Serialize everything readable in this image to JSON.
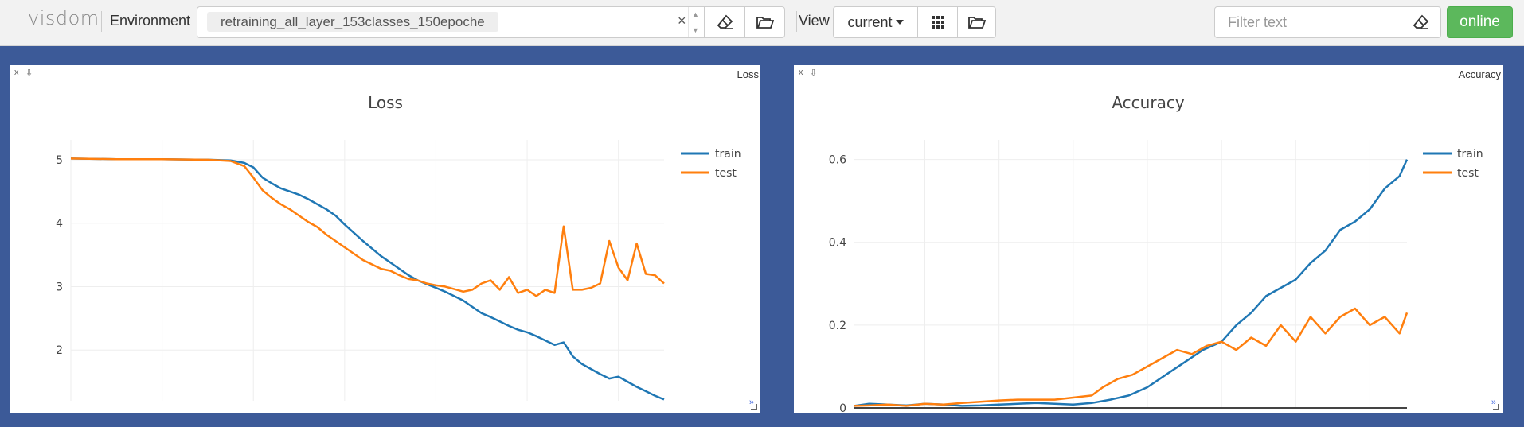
{
  "toolbar": {
    "logo": "visdom",
    "environment_label": "Environment",
    "environment_value": "retraining_all_layer_153classes_150epoche",
    "clear_glyph": "×",
    "view_label": "View",
    "view_value": "current",
    "filter_placeholder": "Filter text",
    "online_label": "online"
  },
  "panes": [
    {
      "name": "Loss",
      "close_glyph": "x",
      "download_glyph": "⇩",
      "expand_glyph": "»",
      "chart_data": {
        "type": "line",
        "title": "Loss",
        "xlabel": "",
        "ylabel": "",
        "xlim": [
          20,
          150
        ],
        "ylim": [
          1.2,
          5.2
        ],
        "xticks": [
          20,
          40,
          60,
          80,
          100,
          120,
          140
        ],
        "yticks": [
          2,
          3,
          4,
          5
        ],
        "grid": true,
        "legend": "top-right",
        "colors": {
          "train": "#1f77b4",
          "test": "#ff7f0e"
        },
        "series": [
          {
            "name": "train",
            "x": [
              20,
              30,
              40,
              50,
              55,
              58,
              60,
              62,
              64,
              66,
              68,
              70,
              72,
              74,
              76,
              78,
              80,
              82,
              84,
              86,
              88,
              90,
              92,
              94,
              96,
              98,
              100,
              102,
              104,
              106,
              108,
              110,
              112,
              114,
              116,
              118,
              120,
              122,
              124,
              126,
              128,
              130,
              132,
              134,
              136,
              138,
              140,
              142,
              144,
              146,
              148,
              150
            ],
            "y": [
              5.02,
              5.01,
              5.01,
              5.0,
              4.99,
              4.95,
              4.88,
              4.72,
              4.63,
              4.55,
              4.5,
              4.45,
              4.38,
              4.3,
              4.22,
              4.12,
              3.98,
              3.85,
              3.72,
              3.6,
              3.48,
              3.38,
              3.28,
              3.18,
              3.1,
              3.04,
              2.98,
              2.92,
              2.85,
              2.78,
              2.68,
              2.58,
              2.52,
              2.45,
              2.38,
              2.32,
              2.28,
              2.22,
              2.15,
              2.08,
              2.12,
              1.9,
              1.78,
              1.7,
              1.62,
              1.55,
              1.58,
              1.5,
              1.42,
              1.35,
              1.28,
              1.22
            ]
          },
          {
            "name": "test",
            "x": [
              20,
              30,
              40,
              50,
              55,
              58,
              60,
              62,
              64,
              66,
              68,
              70,
              72,
              74,
              76,
              78,
              80,
              82,
              84,
              86,
              88,
              90,
              92,
              94,
              96,
              98,
              100,
              102,
              104,
              106,
              108,
              110,
              112,
              114,
              116,
              118,
              120,
              122,
              124,
              126,
              128,
              130,
              132,
              134,
              136,
              138,
              140,
              142,
              144,
              146,
              148,
              150
            ],
            "y": [
              5.02,
              5.01,
              5.01,
              5.0,
              4.98,
              4.9,
              4.72,
              4.52,
              4.4,
              4.3,
              4.22,
              4.12,
              4.02,
              3.94,
              3.82,
              3.72,
              3.62,
              3.52,
              3.42,
              3.35,
              3.28,
              3.25,
              3.18,
              3.12,
              3.1,
              3.05,
              3.02,
              3.0,
              2.96,
              2.92,
              2.95,
              3.05,
              3.1,
              2.95,
              3.15,
              2.9,
              2.95,
              2.85,
              2.95,
              2.9,
              3.95,
              2.95,
              2.95,
              2.98,
              3.05,
              3.72,
              3.3,
              3.1,
              3.68,
              3.2,
              3.18,
              3.05
            ]
          }
        ]
      }
    },
    {
      "name": "Accuracy",
      "close_glyph": "x",
      "download_glyph": "⇩",
      "expand_glyph": "»",
      "chart_data": {
        "type": "line",
        "title": "Accuracy",
        "xlabel": "",
        "ylabel": "",
        "xlim": [
          1,
          150
        ],
        "ylim": [
          0,
          0.63
        ],
        "xticks": [
          20,
          40,
          60,
          80,
          100,
          120,
          140
        ],
        "yticks": [
          0,
          0.2,
          0.4,
          0.6
        ],
        "ytick_labels": [
          "0",
          "0.2",
          "0.4",
          "0.6"
        ],
        "grid": true,
        "legend": "top-right",
        "colors": {
          "train": "#1f77b4",
          "test": "#ff7f0e"
        },
        "series": [
          {
            "name": "train",
            "x": [
              1,
              5,
              10,
              15,
              20,
              25,
              30,
              35,
              40,
              45,
              50,
              55,
              60,
              65,
              70,
              75,
              80,
              85,
              90,
              95,
              100,
              104,
              108,
              112,
              116,
              120,
              124,
              128,
              132,
              136,
              140,
              144,
              148,
              150
            ],
            "y": [
              0.005,
              0.01,
              0.008,
              0.006,
              0.01,
              0.008,
              0.005,
              0.006,
              0.008,
              0.01,
              0.012,
              0.01,
              0.008,
              0.012,
              0.02,
              0.03,
              0.05,
              0.08,
              0.11,
              0.14,
              0.16,
              0.2,
              0.23,
              0.27,
              0.29,
              0.31,
              0.35,
              0.38,
              0.43,
              0.45,
              0.48,
              0.53,
              0.56,
              0.6
            ]
          },
          {
            "name": "test",
            "x": [
              1,
              5,
              10,
              15,
              20,
              25,
              30,
              35,
              40,
              45,
              50,
              55,
              60,
              65,
              68,
              72,
              76,
              80,
              84,
              88,
              92,
              96,
              100,
              104,
              108,
              112,
              116,
              120,
              124,
              128,
              132,
              136,
              140,
              144,
              148,
              150
            ],
            "y": [
              0.005,
              0.006,
              0.008,
              0.005,
              0.01,
              0.008,
              0.012,
              0.015,
              0.018,
              0.02,
              0.02,
              0.02,
              0.025,
              0.03,
              0.05,
              0.07,
              0.08,
              0.1,
              0.12,
              0.14,
              0.13,
              0.15,
              0.16,
              0.14,
              0.17,
              0.15,
              0.2,
              0.16,
              0.22,
              0.18,
              0.22,
              0.24,
              0.2,
              0.22,
              0.18,
              0.23
            ]
          }
        ]
      }
    }
  ]
}
